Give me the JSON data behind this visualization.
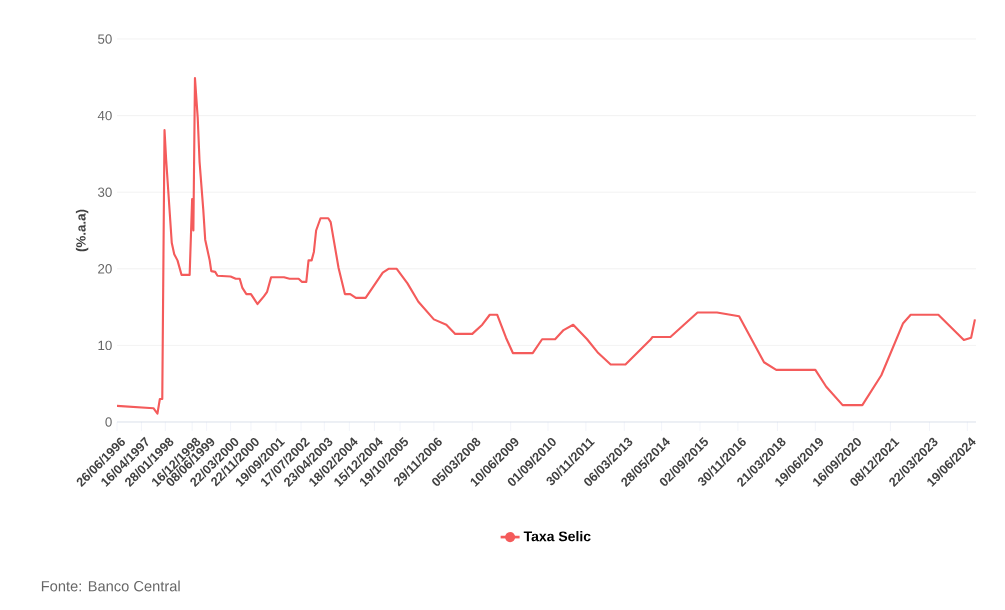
{
  "chart_data": {
    "type": "line",
    "ylabel": "(%.a.a)",
    "annotations": [
      "Fonte: Banco Central"
    ],
    "x": [
      "1996-06-26",
      "1997-09-07",
      "1997-10-25",
      "1997-11-23",
      "1997-12-22",
      "1998-01-18",
      "1998-02-07",
      "1998-04-15",
      "1998-05-15",
      "1998-06-23",
      "1998-08-11",
      "1998-11-16",
      "1998-12-16",
      "1998-12-31",
      "1999-01-19",
      "1999-02-21",
      "1999-03-15",
      "1999-04-29",
      "1999-05-22",
      "1999-07-15",
      "1999-08-03",
      "1999-09-19",
      "1999-10-17",
      "2000-03-22",
      "2000-05-23",
      "2000-07-10",
      "2000-08-11",
      "2000-09-28",
      "2000-11-22",
      "2001-02-08",
      "2001-04-26",
      "2001-06-04",
      "2001-07-22",
      "2001-12-24",
      "2002-03-01",
      "2002-06-18",
      "2002-07-26",
      "2002-09-18",
      "2002-10-15",
      "2002-11-21",
      "2002-12-18",
      "2003-01-14",
      "2003-03-08",
      "2003-06-09",
      "2003-07-08",
      "2003-10-11",
      "2003-12-26",
      "2004-02-28",
      "2004-05-06",
      "2004-08-31",
      "2005-03-25",
      "2005-06-02",
      "2005-09-09",
      "2006-01-16",
      "2006-05-27",
      "2006-11-29",
      "2007-04-28",
      "2007-08-13",
      "2008-03-05",
      "2008-07-03",
      "2008-10-01",
      "2008-12-30",
      "2009-04-14",
      "2009-07-06",
      "2010-03-01",
      "2010-06-22",
      "2010-11-25",
      "2011-03-07",
      "2011-07-01",
      "2011-12-15",
      "2012-04-27",
      "2012-09-23",
      "2013-03-20",
      "2014-01-10",
      "2014-02-08",
      "2014-09-11",
      "2015-08-03",
      "2016-03-24",
      "2016-12-15",
      "2017-10-10",
      "2018-03-06",
      "2019-06-19",
      "2019-10-28",
      "2020-05-12",
      "2021-01-04",
      "2021-08-20",
      "2022-05-09",
      "2022-08-08",
      "2023-07-06",
      "2024-05-08",
      "2024-08-03",
      "2024-09-18"
    ],
    "series": [
      {
        "name": "Taxa Selic",
        "color": "#f45b5b",
        "values": [
          2.1,
          1.8,
          1.1,
          3.0,
          3.0,
          38.1,
          34.2,
          23.4,
          21.9,
          21.1,
          19.2,
          19.2,
          29.1,
          25.0,
          44.9,
          39.7,
          34.0,
          27.7,
          23.8,
          21.1,
          19.7,
          19.6,
          19.1,
          19.0,
          18.7,
          18.7,
          17.5,
          16.7,
          16.7,
          15.4,
          16.4,
          17.0,
          18.9,
          18.9,
          18.7,
          18.7,
          18.3,
          18.3,
          21.1,
          21.1,
          22.2,
          25.0,
          26.6,
          26.6,
          26.1,
          20.1,
          16.7,
          16.7,
          16.2,
          16.2,
          19.5,
          20.0,
          20.0,
          18.1,
          15.7,
          13.4,
          12.7,
          11.5,
          11.5,
          12.7,
          14.0,
          14.0,
          11.0,
          9.0,
          9.0,
          10.8,
          10.8,
          12.0,
          12.7,
          10.8,
          9.0,
          7.5,
          7.5,
          10.7,
          11.1,
          11.1,
          14.3,
          14.3,
          13.8,
          7.8,
          6.8,
          6.8,
          4.6,
          2.2,
          2.2,
          6.1,
          12.9,
          14.0,
          14.0,
          10.7,
          11.0,
          13.4
        ]
      }
    ],
    "xlim": [
      "1996-06-26",
      "2024-10-01"
    ],
    "xticks": [
      {
        "value": "1996-06-26",
        "label": "26/06/1996"
      },
      {
        "value": "1997-04-16",
        "label": "16/04/1997"
      },
      {
        "value": "1998-01-28",
        "label": "28/01/1998"
      },
      {
        "value": "1998-12-16",
        "label": "16/12/1998"
      },
      {
        "value": "1999-06-08",
        "label": "08/06/1999"
      },
      {
        "value": "2000-03-22",
        "label": "22/03/2000"
      },
      {
        "value": "2000-11-22",
        "label": "22/11/2000"
      },
      {
        "value": "2001-09-19",
        "label": "19/09/2001"
      },
      {
        "value": "2002-07-17",
        "label": "17/07/2002"
      },
      {
        "value": "2003-04-23",
        "label": "23/04/2003"
      },
      {
        "value": "2004-02-18",
        "label": "18/02/2004"
      },
      {
        "value": "2004-12-15",
        "label": "15/12/2004"
      },
      {
        "value": "2005-10-19",
        "label": "19/10/2005"
      },
      {
        "value": "2006-11-29",
        "label": "29/11/2006"
      },
      {
        "value": "2008-03-05",
        "label": "05/03/2008"
      },
      {
        "value": "2009-06-10",
        "label": "10/06/2009"
      },
      {
        "value": "2010-09-01",
        "label": "01/09/2010"
      },
      {
        "value": "2011-11-30",
        "label": "30/11/2011"
      },
      {
        "value": "2013-03-06",
        "label": "06/03/2013"
      },
      {
        "value": "2014-05-28",
        "label": "28/05/2014"
      },
      {
        "value": "2015-09-02",
        "label": "02/09/2015"
      },
      {
        "value": "2016-11-30",
        "label": "30/11/2016"
      },
      {
        "value": "2018-03-21",
        "label": "21/03/2018"
      },
      {
        "value": "2019-06-19",
        "label": "19/06/2019"
      },
      {
        "value": "2020-09-16",
        "label": "16/09/2020"
      },
      {
        "value": "2021-12-08",
        "label": "08/12/2021"
      },
      {
        "value": "2023-03-22",
        "label": "22/03/2023"
      },
      {
        "value": "2024-06-19",
        "label": "19/06/2024"
      }
    ],
    "ylim": [
      0,
      50
    ],
    "yticks": [
      0,
      10,
      20,
      30,
      40,
      50
    ],
    "grid": "y",
    "legend": "bottom",
    "line_style": "solid"
  }
}
